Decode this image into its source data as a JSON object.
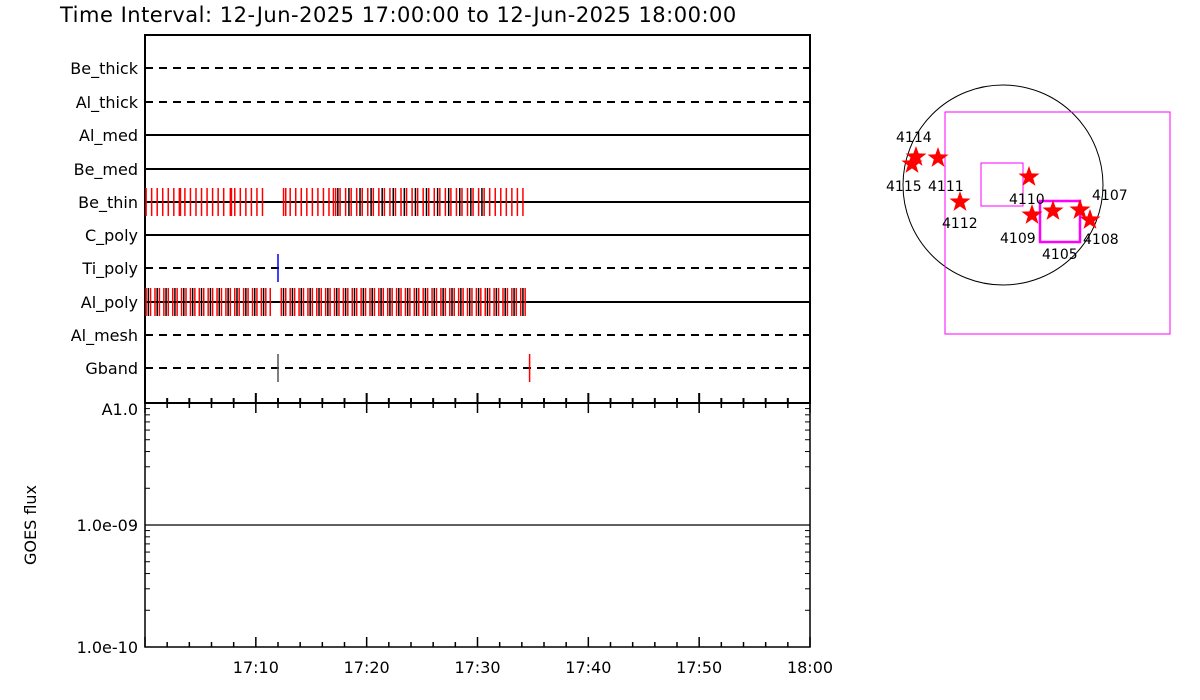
{
  "title": "Time Interval: 12-Jun-2025 17:00:00 to 12-Jun-2025 18:00:00",
  "chart_data": [
    {
      "type": "scatter",
      "description_kind": "filter timeline",
      "x_unit": "minutes after 17:00",
      "xlim": [
        0,
        60
      ],
      "rows": [
        {
          "name": "Be_thick",
          "style": "dashed",
          "ticks": []
        },
        {
          "name": "Al_thick",
          "style": "dashed",
          "ticks": []
        },
        {
          "name": "Al_med",
          "style": "solid",
          "ticks": []
        },
        {
          "name": "Be_med",
          "style": "solid",
          "ticks": []
        },
        {
          "name": "Be_thin",
          "style": "solid",
          "ticks": [
            {
              "color": "#ff0000",
              "times": [
                0.1,
                0.6,
                1.1,
                1.6,
                2.1,
                2.6,
                3.1,
                3.2,
                3.6,
                4.1,
                4.6,
                5.1,
                5.6,
                6.1,
                6.6,
                7.1,
                7.7,
                7.8,
                8.1,
                8.6,
                9.1,
                9.6,
                10.1,
                10.6,
                12.5,
                12.7,
                13.1,
                13.6,
                14.1,
                14.6,
                15.1,
                15.6,
                16.1,
                16.6,
                17.0,
                17.2,
                17.6,
                18.1,
                18.6,
                19.1,
                19.6,
                20.1,
                20.6,
                21.1,
                21.6,
                22.1,
                22.6,
                23.1,
                23.6,
                24.1,
                24.6,
                25.1,
                25.6,
                26.1,
                26.6,
                27.1,
                27.6,
                28.1,
                28.6,
                29.1,
                29.6,
                30.1,
                30.6,
                31.1,
                31.6,
                32.1,
                32.6,
                33.1,
                33.6,
                34.1
              ]
            },
            {
              "color": "#000000",
              "times": [
                17.4,
                18.4,
                19.4,
                20.4,
                21.4,
                22.4,
                23.4,
                24.4,
                25.4,
                26.4,
                27.4,
                28.4,
                29.4,
                30.4
              ]
            }
          ]
        },
        {
          "name": "C_poly",
          "style": "solid",
          "ticks": []
        },
        {
          "name": "Ti_poly",
          "style": "dashed",
          "ticks": [
            {
              "color": "#0000ff",
              "times": [
                12.0
              ]
            }
          ]
        },
        {
          "name": "Al_poly",
          "style": "solid",
          "ticks": [
            {
              "color": "#ff0000",
              "times": [
                0.1,
                0.5,
                0.9,
                1.3,
                1.7,
                2.1,
                2.5,
                2.9,
                3.3,
                3.7,
                4.1,
                4.5,
                4.9,
                5.3,
                5.7,
                6.1,
                6.5,
                6.9,
                7.3,
                7.7,
                8.1,
                8.5,
                8.9,
                9.3,
                9.7,
                10.1,
                10.5,
                10.9,
                11.3,
                12.3,
                12.7,
                13.1,
                13.5,
                13.9,
                14.3,
                14.7,
                15.1,
                15.5,
                15.9,
                16.3,
                16.7,
                17.1,
                17.5,
                17.9,
                18.3,
                18.7,
                19.1,
                19.5,
                19.9,
                20.3,
                20.7,
                21.1,
                21.5,
                21.9,
                22.3,
                22.7,
                23.1,
                23.5,
                23.9,
                24.3,
                24.7,
                25.1,
                25.5,
                25.9,
                26.3,
                26.7,
                27.1,
                27.5,
                27.9,
                28.3,
                28.7,
                29.1,
                29.5,
                29.9,
                30.3,
                30.7,
                31.1,
                31.5,
                31.9,
                32.3,
                32.7,
                33.1,
                33.5,
                33.9,
                34.3
              ]
            },
            {
              "color": "#000000",
              "times": [
                0.3,
                1.1,
                1.9,
                2.7,
                3.5,
                4.3,
                5.1,
                5.9,
                6.7,
                7.5,
                8.3,
                9.1,
                9.9,
                10.7,
                12.5,
                13.3,
                14.1,
                14.9,
                15.7,
                16.5,
                17.3,
                18.1,
                18.9,
                19.7,
                20.5,
                21.3,
                22.1,
                22.9,
                23.7,
                24.5,
                25.3,
                26.1,
                26.9,
                27.7,
                28.5,
                29.3,
                30.1,
                30.9,
                31.7,
                32.5,
                33.3,
                34.1
              ]
            }
          ]
        },
        {
          "name": "Al_mesh",
          "style": "dashed",
          "ticks": []
        },
        {
          "name": "Gband",
          "style": "dashed",
          "ticks": [
            {
              "color": "#555555",
              "times": [
                12.0
              ]
            },
            {
              "color": "#ff0000",
              "times": [
                34.7
              ]
            }
          ]
        }
      ]
    },
    {
      "type": "line",
      "ylabel": "GOES flux",
      "yscale": "log",
      "ylim": [
        1e-10,
        1e-08
      ],
      "ytick_labels": [
        "1.0e-10",
        "1.0e-09",
        "A1.0"
      ],
      "xtick_labels": [
        "17:10",
        "17:20",
        "17:30",
        "17:40",
        "17:50",
        "18:00"
      ],
      "x": [
        0,
        60
      ],
      "y": [
        1e-09,
        1e-09
      ]
    },
    {
      "type": "scatter",
      "description_kind": "solar disk map",
      "points": [
        {
          "label": "4114"
        },
        {
          "label": "4115"
        },
        {
          "label": "4111"
        },
        {
          "label": "4112"
        },
        {
          "label": "4110"
        },
        {
          "label": "4109"
        },
        {
          "label": "4105"
        },
        {
          "label": "4107"
        },
        {
          "label": "4108"
        }
      ],
      "star_color": "#ff0000",
      "fov_color": "#ff00ff"
    }
  ]
}
